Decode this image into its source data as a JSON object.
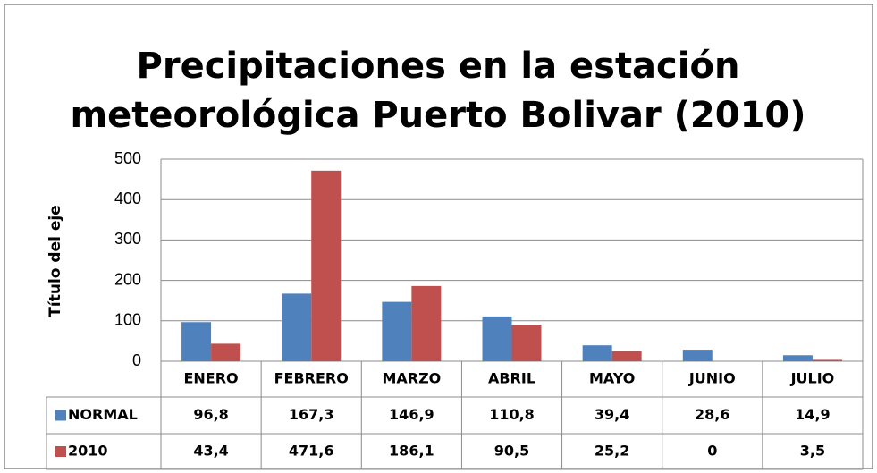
{
  "chart_data": {
    "type": "bar",
    "title": [
      "Precipitaciones  en  la estación",
      "meteorológica Puerto Bolivar (2010)"
    ],
    "y_axis_label": "Título del eje",
    "categories": [
      "ENERO",
      "FEBRERO",
      "MARZO",
      "ABRIL",
      "MAYO",
      "JUNIO",
      "JULIO"
    ],
    "series": [
      {
        "name": "NORMAL",
        "color": "#4f81bd",
        "values": [
          96.8,
          167.3,
          146.9,
          110.8,
          39.4,
          28.6,
          14.9
        ],
        "value_labels": [
          "96,8",
          "167,3",
          "146,9",
          "110,8",
          "39,4",
          "28,6",
          "14,9"
        ]
      },
      {
        "name": "2010",
        "color": "#c0504d",
        "values": [
          43.4,
          471.6,
          186.1,
          90.5,
          25.2,
          0,
          3.5
        ],
        "value_labels": [
          "43,4",
          "471,6",
          "186,1",
          "90,5",
          "25,2",
          "0",
          "3,5"
        ]
      }
    ],
    "ylim": [
      0,
      500
    ],
    "yticks": [
      0,
      100,
      200,
      300,
      400,
      500
    ],
    "grid": true
  }
}
